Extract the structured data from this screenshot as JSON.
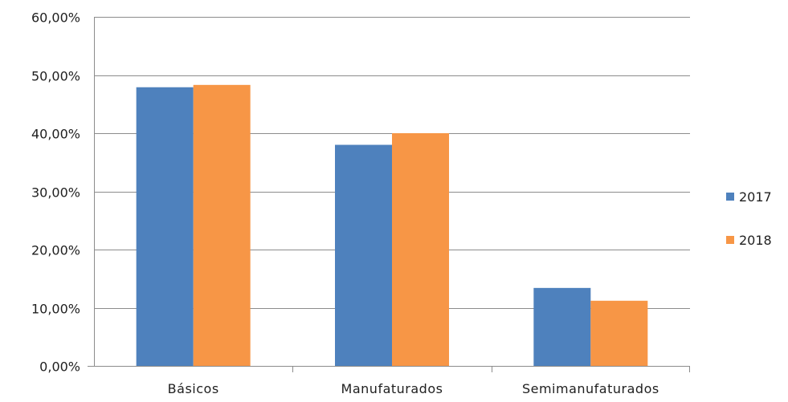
{
  "chart_data": {
    "type": "bar",
    "title": "",
    "xlabel": "",
    "ylabel": "",
    "categories": [
      "Básicos",
      "Manufaturados",
      "Semimanufaturados"
    ],
    "series": [
      {
        "name": "2017",
        "values": [
          47.9,
          38.0,
          13.4
        ],
        "color": "#4e81bd"
      },
      {
        "name": "2018",
        "values": [
          48.3,
          40.0,
          11.2
        ],
        "color": "#f79646"
      }
    ],
    "ylim": [
      0,
      60
    ],
    "yticks": [
      "0,00%",
      "10,00%",
      "20,00%",
      "30,00%",
      "40,00%",
      "50,00%",
      "60,00%"
    ],
    "grid": true,
    "legend_position": "right"
  }
}
